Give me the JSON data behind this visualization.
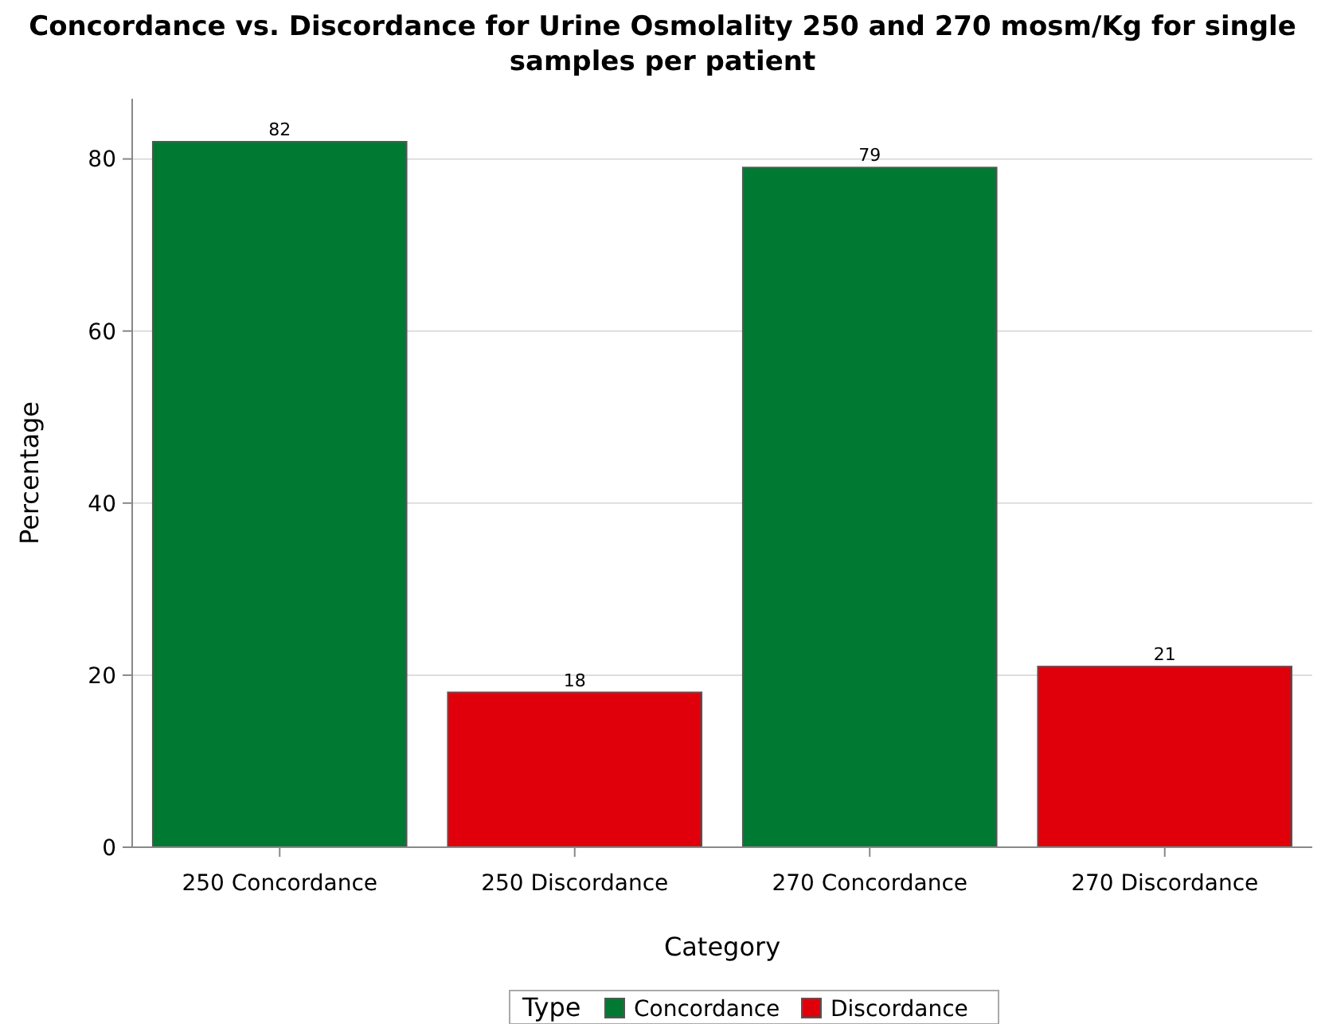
{
  "chart_data": {
    "type": "bar",
    "title": "Concordance vs. Discordance for Urine Osmolality 250 and 270 mosm/Kg for single samples per patient",
    "xlabel": "Category",
    "ylabel": "Percentage",
    "legend_title": "Type",
    "categories": [
      "250 Concordance",
      "250 Discordance",
      "270 Concordance",
      "270 Discordance"
    ],
    "series": [
      {
        "name": "Concordance",
        "color": "#007a33",
        "values": [
          82,
          null,
          79,
          null
        ]
      },
      {
        "name": "Discordance",
        "color": "#e0000b",
        "values": [
          null,
          18,
          null,
          21
        ]
      }
    ],
    "ylim": [
      0,
      87
    ],
    "yticks": [
      0,
      20,
      40,
      60,
      80
    ],
    "grid": "y",
    "legend": "bottom",
    "data_labels": true
  }
}
